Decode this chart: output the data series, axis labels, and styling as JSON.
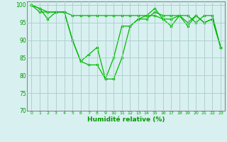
{
  "line1": [
    100,
    99,
    96,
    98,
    98,
    90,
    84,
    86,
    88,
    79,
    85,
    94,
    94,
    96,
    97,
    99,
    96,
    94,
    97,
    95,
    97,
    95,
    96,
    88
  ],
  "line2": [
    100,
    98,
    98,
    98,
    98,
    97,
    97,
    97,
    97,
    97,
    97,
    97,
    97,
    97,
    97,
    97,
    96,
    96,
    97,
    97,
    95,
    97,
    97,
    88
  ],
  "line3": [
    100,
    99,
    98,
    98,
    98,
    90,
    84,
    83,
    83,
    79,
    79,
    85,
    94,
    96,
    96,
    98,
    97,
    97,
    97,
    94,
    97,
    95,
    96,
    88
  ],
  "x": [
    0,
    1,
    2,
    3,
    4,
    5,
    6,
    7,
    8,
    9,
    10,
    11,
    12,
    13,
    14,
    15,
    16,
    17,
    18,
    19,
    20,
    21,
    22,
    23
  ],
  "ylim": [
    70,
    101
  ],
  "yticks": [
    70,
    75,
    80,
    85,
    90,
    95,
    100
  ],
  "xlabel": "Humidité relative (%)",
  "line_color": "#00bb00",
  "bg_color": "#d8f0f0",
  "grid_color": "#aacccc",
  "xlabel_color": "#009900",
  "tick_color": "#009900",
  "spine_color": "#888888"
}
